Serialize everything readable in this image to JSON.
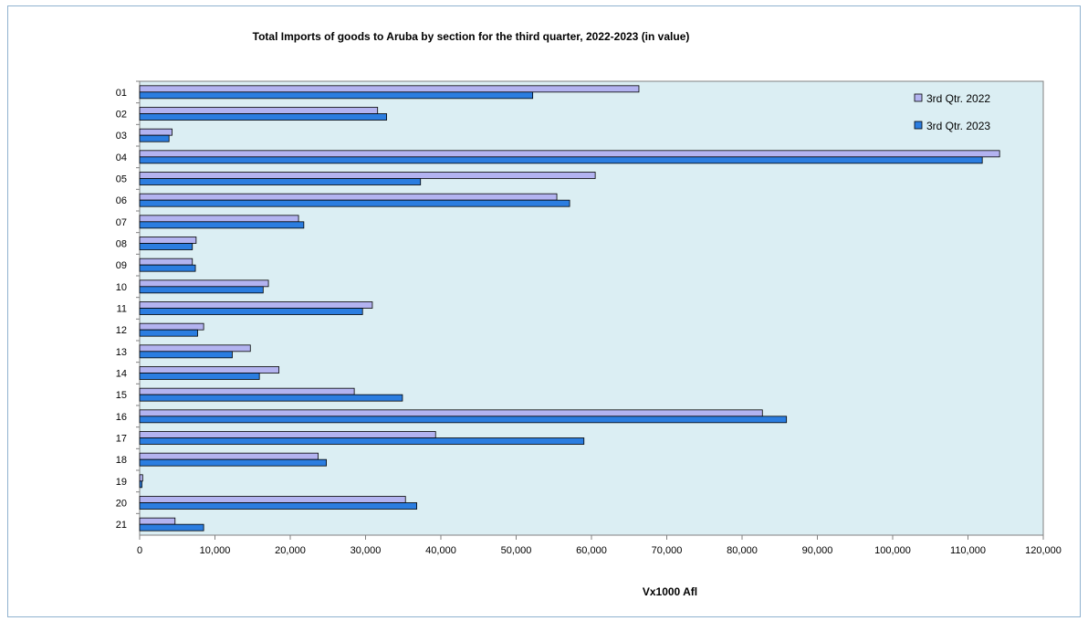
{
  "chart_data": {
    "type": "bar",
    "orientation": "horizontal",
    "title": "Total Imports of goods to Aruba by section for the third quarter, 2022-2023 (in value)",
    "xlabel": "Vx1000 Afl",
    "ylabel": "",
    "xlim": [
      0,
      120000
    ],
    "xticks": [
      "0",
      "10,000",
      "20,000",
      "30,000",
      "40,000",
      "50,000",
      "60,000",
      "70,000",
      "80,000",
      "90,000",
      "100,000",
      "110,000",
      "120,000"
    ],
    "categories": [
      "01",
      "02",
      "03",
      "04",
      "05",
      "06",
      "07",
      "08",
      "09",
      "10",
      "11",
      "12",
      "13",
      "14",
      "15",
      "16",
      "17",
      "18",
      "19",
      "20",
      "21"
    ],
    "series": [
      {
        "name": "3rd Qtr. 2022",
        "color": "#b3b3f0",
        "values": [
          66300,
          31600,
          4300,
          114200,
          60500,
          55400,
          21100,
          7500,
          7000,
          17100,
          30900,
          8500,
          14700,
          18500,
          28500,
          82700,
          39300,
          23700,
          400,
          35300,
          4700
        ]
      },
      {
        "name": "3rd Qtr. 2023",
        "color": "#2b7de0",
        "values": [
          52200,
          32800,
          3900,
          111900,
          37300,
          57100,
          21800,
          7000,
          7400,
          16400,
          29600,
          7700,
          12300,
          15900,
          34900,
          85900,
          59000,
          24800,
          300,
          36800,
          8500
        ]
      }
    ],
    "plot_background": "#dbeef3",
    "legend_position": "top-right",
    "grid": false
  }
}
